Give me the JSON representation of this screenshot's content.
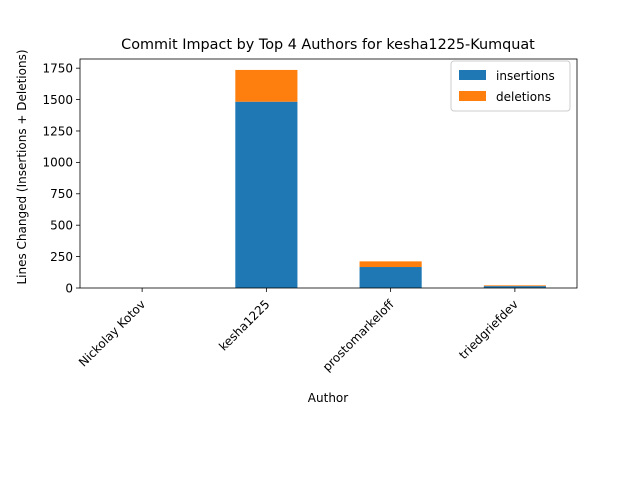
{
  "chart_data": {
    "type": "bar",
    "stacked": true,
    "title": "Commit Impact by Top 4 Authors for kesha1225-Kumquat",
    "xlabel": "Author",
    "ylabel": "Lines Changed (Insertions + Deletions)",
    "categories": [
      "Nickolay Kotov",
      "kesha1225",
      "prostomarkeloff",
      "triedgriefdev"
    ],
    "series": [
      {
        "name": "insertions",
        "color": "#1f77b4",
        "values": [
          0,
          1483,
          167,
          15
        ]
      },
      {
        "name": "deletions",
        "color": "#ff7f0e",
        "values": [
          0,
          253,
          45,
          6
        ]
      }
    ],
    "ylim": [
      0,
      1823
    ],
    "yticks": [
      0,
      250,
      500,
      750,
      1000,
      1250,
      1500,
      1750
    ],
    "grid": false,
    "legend_position": "top-right"
  }
}
